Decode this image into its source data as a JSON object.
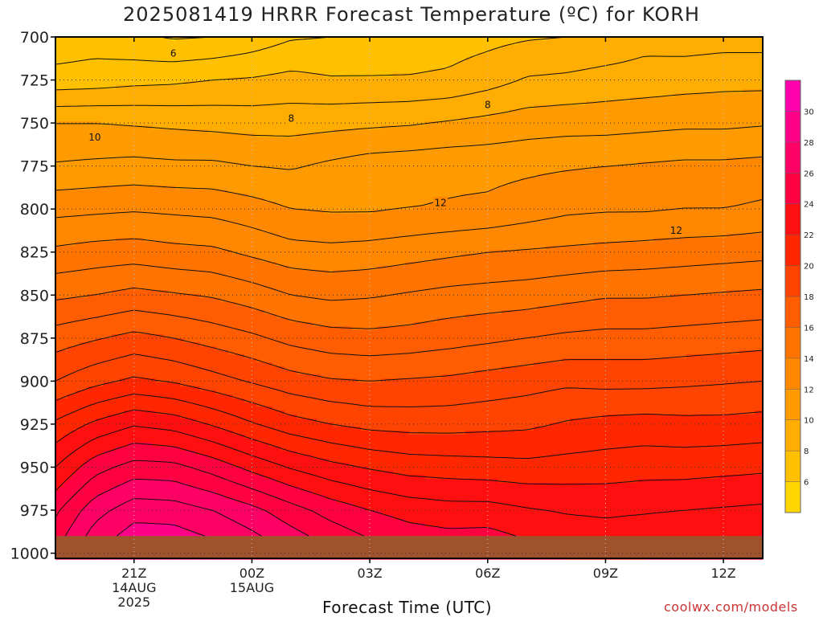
{
  "chart_data": {
    "type": "contour",
    "title": "2025081419 HRRR Forecast Temperature (ºC) for KORH",
    "xlabel": "Forecast Time (UTC)",
    "ylabel": "",
    "credit": "coolwx.com/models",
    "x_range_hours": [
      -2,
      16
    ],
    "y_range_hPa": [
      700,
      1003
    ],
    "y_reversed": true,
    "y_ticks": [
      700,
      725,
      750,
      775,
      800,
      825,
      850,
      875,
      900,
      925,
      950,
      975,
      1000
    ],
    "x_ticks": [
      {
        "hour": 0,
        "lines": [
          "21Z",
          "14AUG",
          "2025"
        ]
      },
      {
        "hour": 3,
        "lines": [
          "00Z",
          "15AUG"
        ]
      },
      {
        "hour": 6,
        "lines": [
          "03Z"
        ]
      },
      {
        "hour": 9,
        "lines": [
          "06Z"
        ]
      },
      {
        "hour": 12,
        "lines": [
          "09Z"
        ]
      },
      {
        "hour": 15,
        "lines": [
          "12Z"
        ]
      }
    ],
    "grid": true,
    "colorbar": {
      "position": "right",
      "min": 4,
      "max": 32,
      "step": 2,
      "tick_labels": [
        "6",
        "8",
        "10",
        "12",
        "14",
        "16",
        "18",
        "20",
        "22",
        "24",
        "26",
        "28",
        "30"
      ],
      "colors": [
        "#ffd700",
        "#ffc000",
        "#ffad00",
        "#ff9b00",
        "#ff8800",
        "#ff7400",
        "#ff5d00",
        "#ff4300",
        "#ff2600",
        "#ff0f0f",
        "#ff0040",
        "#ff0064",
        "#ff0088",
        "#ff00ac"
      ]
    },
    "contour_interval": 1,
    "contour_labels": [
      {
        "value": "6",
        "hour": 1.0,
        "hPa": 709
      },
      {
        "value": "8",
        "hour": 4.0,
        "hPa": 747
      },
      {
        "value": "8",
        "hour": 9.0,
        "hPa": 739
      },
      {
        "value": "10",
        "hour": -1.0,
        "hPa": 758
      },
      {
        "value": "12",
        "hour": 7.8,
        "hPa": 796
      },
      {
        "value": "12",
        "hour": 13.8,
        "hPa": 812
      }
    ],
    "times_hours": [
      -2,
      -1,
      0,
      1,
      2,
      3,
      4,
      5,
      6,
      7,
      8,
      9,
      10,
      11,
      12,
      13,
      14,
      15,
      16
    ],
    "pressure_levels_hPa": [
      700,
      725,
      750,
      775,
      800,
      825,
      850,
      875,
      900,
      925,
      950,
      975,
      1000
    ],
    "temperature_C": [
      [
        6.3,
        6.5,
        6.2,
        5.9,
        6.0,
        6.4,
        6.9,
        7.0,
        7.1,
        7.3,
        7.5,
        7.7,
        7.9,
        8.0,
        8.2,
        8.6,
        8.5,
        8.6,
        8.6
      ],
      [
        7.4,
        7.5,
        7.7,
        7.8,
        8.0,
        8.1,
        8.3,
        8.1,
        8.1,
        8.1,
        8.2,
        8.6,
        9.1,
        9.2,
        9.4,
        9.5,
        9.6,
        9.7,
        9.7
      ],
      [
        10.0,
        10.0,
        9.9,
        9.8,
        9.7,
        9.6,
        9.6,
        9.7,
        9.8,
        9.9,
        10.1,
        10.3,
        10.5,
        10.6,
        10.6,
        10.7,
        10.8,
        10.8,
        10.9
      ],
      [
        11.1,
        11.2,
        11.3,
        11.2,
        11.2,
        11.0,
        10.9,
        11.2,
        11.5,
        11.6,
        11.7,
        11.7,
        11.8,
        11.9,
        12.0,
        12.1,
        12.2,
        12.2,
        12.3
      ],
      [
        12.7,
        12.8,
        12.9,
        12.8,
        12.7,
        12.4,
        12.0,
        11.9,
        11.9,
        12.0,
        12.1,
        12.2,
        12.5,
        12.8,
        12.9,
        12.9,
        13.0,
        13.0,
        13.2
      ],
      [
        14.2,
        14.4,
        14.5,
        14.3,
        14.2,
        13.8,
        13.4,
        13.3,
        13.4,
        13.6,
        13.8,
        14.0,
        14.1,
        14.2,
        14.3,
        14.4,
        14.5,
        14.6,
        14.7
      ],
      [
        15.8,
        16.0,
        16.3,
        16.1,
        15.9,
        15.5,
        15.0,
        14.8,
        14.9,
        15.1,
        15.3,
        15.4,
        15.5,
        15.7,
        15.9,
        15.9,
        16.0,
        16.1,
        16.2
      ],
      [
        17.5,
        17.9,
        18.3,
        18.0,
        17.6,
        17.2,
        16.7,
        16.4,
        16.3,
        16.4,
        16.6,
        16.8,
        17.0,
        17.2,
        17.3,
        17.3,
        17.4,
        17.5,
        17.6
      ],
      [
        19.0,
        19.7,
        20.2,
        19.9,
        19.4,
        18.9,
        18.4,
        18.1,
        18.0,
        18.1,
        18.2,
        18.4,
        18.6,
        18.8,
        18.7,
        18.7,
        18.8,
        18.9,
        19.0
      ],
      [
        21.2,
        22.2,
        22.9,
        22.6,
        21.9,
        21.1,
        20.4,
        20.0,
        19.7,
        19.6,
        19.6,
        19.7,
        19.8,
        20.1,
        20.3,
        20.4,
        20.3,
        20.3,
        20.4
      ],
      [
        23.0,
        24.6,
        25.4,
        25.3,
        24.6,
        23.7,
        22.9,
        22.3,
        21.9,
        21.6,
        21.5,
        21.4,
        21.3,
        21.4,
        21.5,
        21.6,
        21.6,
        21.7,
        21.8
      ],
      [
        24.8,
        26.6,
        27.6,
        27.5,
        27.0,
        26.3,
        25.4,
        24.6,
        24.0,
        23.6,
        23.4,
        23.4,
        23.1,
        22.9,
        22.8,
        22.9,
        23.0,
        23.1,
        23.2
      ],
      [
        26.0,
        28.0,
        29.0,
        29.0,
        28.5,
        27.8,
        27.0,
        26.2,
        25.5,
        25.0,
        24.8,
        24.9,
        24.4,
        24.0,
        23.9,
        24.0,
        24.1,
        24.3,
        24.5
      ]
    ],
    "ground_surface": {
      "color": "#a0522d",
      "pressure_hPa": 990
    }
  }
}
